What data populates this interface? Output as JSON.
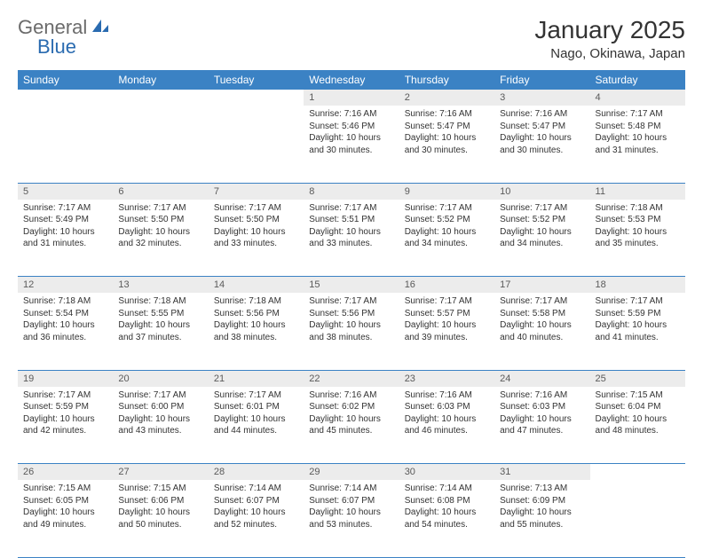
{
  "logo": {
    "part1": "General",
    "part2": "Blue"
  },
  "title": "January 2025",
  "location": "Nago, Okinawa, Japan",
  "colors": {
    "header_bg": "#3b82c4",
    "header_text": "#ffffff",
    "daynum_bg": "#ececec",
    "daynum_text": "#5a5a5a",
    "border": "#3b82c4",
    "body_text": "#333333",
    "logo_gray": "#6b6b6b",
    "logo_blue": "#2a6bb0"
  },
  "day_headers": [
    "Sunday",
    "Monday",
    "Tuesday",
    "Wednesday",
    "Thursday",
    "Friday",
    "Saturday"
  ],
  "weeks": [
    [
      null,
      null,
      null,
      {
        "n": "1",
        "sr": "7:16 AM",
        "ss": "5:46 PM",
        "dl": "10 hours and 30 minutes."
      },
      {
        "n": "2",
        "sr": "7:16 AM",
        "ss": "5:47 PM",
        "dl": "10 hours and 30 minutes."
      },
      {
        "n": "3",
        "sr": "7:16 AM",
        "ss": "5:47 PM",
        "dl": "10 hours and 30 minutes."
      },
      {
        "n": "4",
        "sr": "7:17 AM",
        "ss": "5:48 PM",
        "dl": "10 hours and 31 minutes."
      }
    ],
    [
      {
        "n": "5",
        "sr": "7:17 AM",
        "ss": "5:49 PM",
        "dl": "10 hours and 31 minutes."
      },
      {
        "n": "6",
        "sr": "7:17 AM",
        "ss": "5:50 PM",
        "dl": "10 hours and 32 minutes."
      },
      {
        "n": "7",
        "sr": "7:17 AM",
        "ss": "5:50 PM",
        "dl": "10 hours and 33 minutes."
      },
      {
        "n": "8",
        "sr": "7:17 AM",
        "ss": "5:51 PM",
        "dl": "10 hours and 33 minutes."
      },
      {
        "n": "9",
        "sr": "7:17 AM",
        "ss": "5:52 PM",
        "dl": "10 hours and 34 minutes."
      },
      {
        "n": "10",
        "sr": "7:17 AM",
        "ss": "5:52 PM",
        "dl": "10 hours and 34 minutes."
      },
      {
        "n": "11",
        "sr": "7:18 AM",
        "ss": "5:53 PM",
        "dl": "10 hours and 35 minutes."
      }
    ],
    [
      {
        "n": "12",
        "sr": "7:18 AM",
        "ss": "5:54 PM",
        "dl": "10 hours and 36 minutes."
      },
      {
        "n": "13",
        "sr": "7:18 AM",
        "ss": "5:55 PM",
        "dl": "10 hours and 37 minutes."
      },
      {
        "n": "14",
        "sr": "7:18 AM",
        "ss": "5:56 PM",
        "dl": "10 hours and 38 minutes."
      },
      {
        "n": "15",
        "sr": "7:17 AM",
        "ss": "5:56 PM",
        "dl": "10 hours and 38 minutes."
      },
      {
        "n": "16",
        "sr": "7:17 AM",
        "ss": "5:57 PM",
        "dl": "10 hours and 39 minutes."
      },
      {
        "n": "17",
        "sr": "7:17 AM",
        "ss": "5:58 PM",
        "dl": "10 hours and 40 minutes."
      },
      {
        "n": "18",
        "sr": "7:17 AM",
        "ss": "5:59 PM",
        "dl": "10 hours and 41 minutes."
      }
    ],
    [
      {
        "n": "19",
        "sr": "7:17 AM",
        "ss": "5:59 PM",
        "dl": "10 hours and 42 minutes."
      },
      {
        "n": "20",
        "sr": "7:17 AM",
        "ss": "6:00 PM",
        "dl": "10 hours and 43 minutes."
      },
      {
        "n": "21",
        "sr": "7:17 AM",
        "ss": "6:01 PM",
        "dl": "10 hours and 44 minutes."
      },
      {
        "n": "22",
        "sr": "7:16 AM",
        "ss": "6:02 PM",
        "dl": "10 hours and 45 minutes."
      },
      {
        "n": "23",
        "sr": "7:16 AM",
        "ss": "6:03 PM",
        "dl": "10 hours and 46 minutes."
      },
      {
        "n": "24",
        "sr": "7:16 AM",
        "ss": "6:03 PM",
        "dl": "10 hours and 47 minutes."
      },
      {
        "n": "25",
        "sr": "7:15 AM",
        "ss": "6:04 PM",
        "dl": "10 hours and 48 minutes."
      }
    ],
    [
      {
        "n": "26",
        "sr": "7:15 AM",
        "ss": "6:05 PM",
        "dl": "10 hours and 49 minutes."
      },
      {
        "n": "27",
        "sr": "7:15 AM",
        "ss": "6:06 PM",
        "dl": "10 hours and 50 minutes."
      },
      {
        "n": "28",
        "sr": "7:14 AM",
        "ss": "6:07 PM",
        "dl": "10 hours and 52 minutes."
      },
      {
        "n": "29",
        "sr": "7:14 AM",
        "ss": "6:07 PM",
        "dl": "10 hours and 53 minutes."
      },
      {
        "n": "30",
        "sr": "7:14 AM",
        "ss": "6:08 PM",
        "dl": "10 hours and 54 minutes."
      },
      {
        "n": "31",
        "sr": "7:13 AM",
        "ss": "6:09 PM",
        "dl": "10 hours and 55 minutes."
      },
      null
    ]
  ],
  "labels": {
    "sunrise": "Sunrise:",
    "sunset": "Sunset:",
    "daylight": "Daylight:"
  }
}
